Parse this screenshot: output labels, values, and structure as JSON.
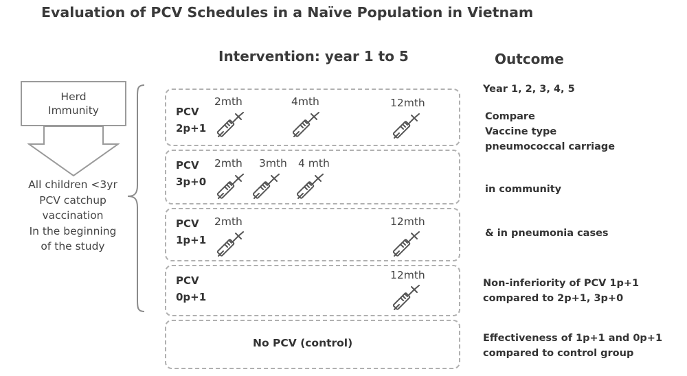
{
  "title": "Evaluation of PCV Schedules in a Naïve Population in Vietnam",
  "intervention_header": "Intervention: year 1 to 5",
  "outcome_header": "Outcome",
  "left_panel": {
    "herd_box": [
      "Herd",
      "Immunity"
    ],
    "catchup_lines": [
      "All children <3yr",
      "PCV catchup",
      "vaccination",
      "In the beginning",
      "of the study"
    ]
  },
  "schedules": [
    {
      "label": [
        "PCV",
        "2p+1"
      ],
      "doses": [
        "2mth",
        "4mth",
        "12mth"
      ]
    },
    {
      "label": [
        "PCV",
        "3p+0"
      ],
      "doses": [
        "2mth",
        "3mth",
        "4 mth"
      ]
    },
    {
      "label": [
        "PCV",
        "1p+1"
      ],
      "doses": [
        "2mth",
        "12mth"
      ]
    },
    {
      "label": [
        "PCV",
        "0p+1"
      ],
      "doses": [
        "12mth"
      ]
    }
  ],
  "control_label": "No PCV (control)",
  "outcomes": {
    "years": "Year 1, 2, 3, 4, 5",
    "compare": [
      "Compare",
      "Vaccine type",
      "pneumococcal carriage"
    ],
    "community": "in community",
    "pneumonia": "& in pneumonia cases",
    "noninferiority": [
      "Non-inferiority of PCV 1p+1",
      "compared to 2p+1, 3p+0"
    ],
    "effectiveness": [
      "Effectiveness of 1p+1 and 0p+1",
      "compared to control group"
    ]
  },
  "colors": {
    "dashed_border": "#b0b0b0",
    "syringe": "#555555",
    "text": "#333333"
  },
  "icons": {
    "syringe": "syringe-icon",
    "arrow": "down-arrow-icon",
    "brace": "left-brace-icon"
  }
}
